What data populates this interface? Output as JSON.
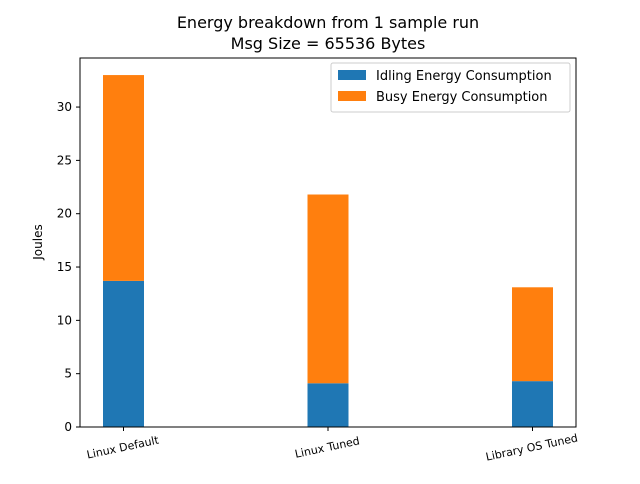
{
  "chart_data": {
    "type": "bar",
    "stacked": true,
    "title_line1": "Energy breakdown from 1 sample run",
    "title_line2": "Msg Size = 65536 Bytes",
    "xlabel": "",
    "ylabel": "Joules",
    "categories": [
      "Linux Default",
      "Linux Tuned",
      "Library OS Tuned"
    ],
    "series": [
      {
        "name": "Idling Energy Consumption",
        "color": "#1f77b4",
        "values": [
          13.7,
          4.1,
          4.3
        ]
      },
      {
        "name": "Busy Energy Consumption",
        "color": "#ff7f0e",
        "values": [
          19.3,
          17.7,
          8.8
        ]
      }
    ],
    "ylim": [
      0,
      34.6
    ],
    "yticks": [
      0,
      5,
      10,
      15,
      20,
      25,
      30
    ],
    "grid": false,
    "legend_position": "top-right"
  }
}
